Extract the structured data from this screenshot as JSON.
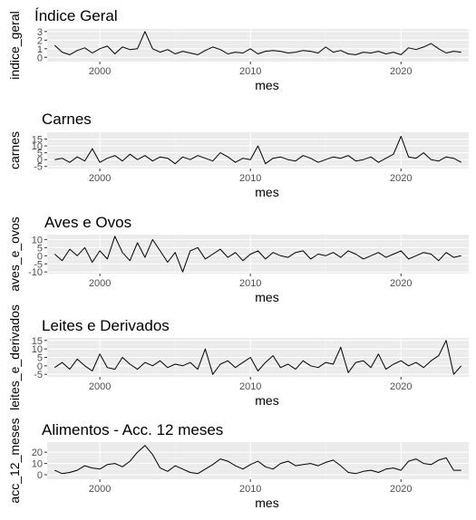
{
  "chart_data": [
    {
      "type": "line",
      "title": "Índice Geral",
      "xlabel": "mes",
      "ylabel": "indice_geral",
      "xlim": [
        1996.5,
        2024.5
      ],
      "ylim": [
        -0.5,
        3.3
      ],
      "x_ticks": [
        2000,
        2010,
        2020
      ],
      "y_ticks": [
        0,
        1,
        2,
        3
      ],
      "grid": true,
      "x": [
        1997,
        1997.5,
        1998,
        1998.5,
        1999,
        1999.5,
        2000,
        2000.5,
        2001,
        2001.5,
        2002,
        2002.5,
        2003,
        2003.5,
        2004,
        2004.5,
        2005,
        2005.5,
        2006,
        2006.5,
        2007,
        2007.5,
        2008,
        2008.5,
        2009,
        2009.5,
        2010,
        2010.5,
        2011,
        2011.5,
        2012,
        2012.5,
        2013,
        2013.5,
        2014,
        2014.5,
        2015,
        2015.5,
        2016,
        2016.5,
        2017,
        2017.5,
        2018,
        2018.5,
        2019,
        2019.5,
        2020,
        2020.5,
        2021,
        2021.5,
        2022,
        2022.5,
        2023,
        2023.5,
        2024
      ],
      "series": [
        {
          "values": [
            1.4,
            0.6,
            0.3,
            0.8,
            1.1,
            0.5,
            1.0,
            1.3,
            0.4,
            1.2,
            0.9,
            1.0,
            3.0,
            1.0,
            0.6,
            0.9,
            0.4,
            0.7,
            0.5,
            0.3,
            0.8,
            1.2,
            0.9,
            0.4,
            0.6,
            0.5,
            1.0,
            0.4,
            0.7,
            0.8,
            0.7,
            0.5,
            0.6,
            0.8,
            0.7,
            0.5,
            1.2,
            0.6,
            0.8,
            0.4,
            0.3,
            0.6,
            0.5,
            0.7,
            0.4,
            0.6,
            0.3,
            1.1,
            0.9,
            1.2,
            1.6,
            1.0,
            0.5,
            0.7,
            0.6
          ]
        }
      ]
    },
    {
      "type": "line",
      "title": "Carnes",
      "xlabel": "mes",
      "ylabel": "carnes",
      "xlim": [
        1996.5,
        2024.5
      ],
      "ylim": [
        -6.5,
        20
      ],
      "x_ticks": [
        2000,
        2010,
        2020
      ],
      "y_ticks": [
        -5,
        0,
        5,
        10,
        15
      ],
      "grid": true,
      "x": [
        1997,
        1997.5,
        1998,
        1998.5,
        1999,
        1999.5,
        2000,
        2000.5,
        2001,
        2001.5,
        2002,
        2002.5,
        2003,
        2003.5,
        2004,
        2004.5,
        2005,
        2005.5,
        2006,
        2006.5,
        2007,
        2007.5,
        2008,
        2008.5,
        2009,
        2009.5,
        2010,
        2010.5,
        2011,
        2011.5,
        2012,
        2012.5,
        2013,
        2013.5,
        2014,
        2014.5,
        2015,
        2015.5,
        2016,
        2016.5,
        2017,
        2017.5,
        2018,
        2018.5,
        2019,
        2019.5,
        2020,
        2020.5,
        2021,
        2021.5,
        2022,
        2022.5,
        2023,
        2023.5,
        2024
      ],
      "series": [
        {
          "values": [
            0,
            1,
            -2,
            2,
            -1,
            8,
            -2,
            1,
            3,
            -1,
            4,
            0,
            3,
            -1,
            2,
            1,
            -3,
            2,
            0,
            3,
            1,
            -1,
            5,
            2,
            -2,
            1,
            0,
            10,
            -3,
            1,
            2,
            0,
            -1,
            3,
            1,
            -2,
            0,
            2,
            1,
            3,
            -1,
            0,
            2,
            -2,
            1,
            4,
            17,
            2,
            1,
            5,
            0,
            -1,
            2,
            1,
            -2
          ]
        }
      ]
    },
    {
      "type": "line",
      "title": "Aves e Ovos",
      "xlabel": "mes",
      "ylabel": "aves_e_ovos",
      "xlim": [
        1996.5,
        2024.5
      ],
      "ylim": [
        -11,
        13
      ],
      "x_ticks": [
        2000,
        2010,
        2020
      ],
      "y_ticks": [
        -10,
        -5,
        0,
        5,
        10
      ],
      "grid": true,
      "x": [
        1997,
        1997.5,
        1998,
        1998.5,
        1999,
        1999.5,
        2000,
        2000.5,
        2001,
        2001.5,
        2002,
        2002.5,
        2003,
        2003.5,
        2004,
        2004.5,
        2005,
        2005.5,
        2006,
        2006.5,
        2007,
        2007.5,
        2008,
        2008.5,
        2009,
        2009.5,
        2010,
        2010.5,
        2011,
        2011.5,
        2012,
        2012.5,
        2013,
        2013.5,
        2014,
        2014.5,
        2015,
        2015.5,
        2016,
        2016.5,
        2017,
        2017.5,
        2018,
        2018.5,
        2019,
        2019.5,
        2020,
        2020.5,
        2021,
        2021.5,
        2022,
        2022.5,
        2023,
        2023.5,
        2024
      ],
      "series": [
        {
          "values": [
            1,
            -3,
            4,
            0,
            5,
            -4,
            3,
            -2,
            12,
            2,
            -3,
            8,
            -1,
            10,
            3,
            -4,
            2,
            -10,
            3,
            5,
            -2,
            1,
            4,
            -1,
            2,
            -3,
            1,
            3,
            -2,
            2,
            0,
            -1,
            2,
            3,
            -2,
            1,
            0,
            2,
            -1,
            3,
            1,
            -2,
            0,
            2,
            -1,
            1,
            3,
            -2,
            0,
            2,
            1,
            -3,
            2,
            -1,
            0
          ]
        }
      ]
    },
    {
      "type": "line",
      "title": "Leites e Derivados",
      "xlabel": "mes",
      "ylabel": "leites_e_derivados",
      "xlim": [
        1996.5,
        2024.5
      ],
      "ylim": [
        -6.5,
        16.5
      ],
      "x_ticks": [
        2000,
        2010,
        2020
      ],
      "y_ticks": [
        -5,
        0,
        5,
        10,
        15
      ],
      "grid": true,
      "x": [
        1997,
        1997.5,
        1998,
        1998.5,
        1999,
        1999.5,
        2000,
        2000.5,
        2001,
        2001.5,
        2002,
        2002.5,
        2003,
        2003.5,
        2004,
        2004.5,
        2005,
        2005.5,
        2006,
        2006.5,
        2007,
        2007.5,
        2008,
        2008.5,
        2009,
        2009.5,
        2010,
        2010.5,
        2011,
        2011.5,
        2012,
        2012.5,
        2013,
        2013.5,
        2014,
        2014.5,
        2015,
        2015.5,
        2016,
        2016.5,
        2017,
        2017.5,
        2018,
        2018.5,
        2019,
        2019.5,
        2020,
        2020.5,
        2021,
        2021.5,
        2022,
        2022.5,
        2023,
        2023.5,
        2024
      ],
      "series": [
        {
          "values": [
            -1,
            2,
            -2,
            4,
            0,
            -3,
            7,
            -1,
            -2,
            5,
            1,
            -2,
            2,
            0,
            3,
            -1,
            1,
            0,
            2,
            -2,
            10,
            -5,
            1,
            3,
            -1,
            2,
            5,
            -3,
            2,
            6,
            -1,
            1,
            -2,
            3,
            0,
            -1,
            2,
            1,
            11,
            -4,
            2,
            3,
            -1,
            7,
            -2,
            1,
            3,
            0,
            2,
            -1,
            3,
            6,
            15,
            -5,
            0
          ]
        }
      ]
    },
    {
      "type": "line",
      "title": "Alimentos - Acc. 12 meses",
      "xlabel": "mes",
      "ylabel": "acc_12_meses",
      "xlim": [
        1996.5,
        2024.5
      ],
      "ylim": [
        -4,
        29
      ],
      "x_ticks": [
        2000,
        2010,
        2020
      ],
      "y_ticks": [
        0,
        10,
        20
      ],
      "grid": true,
      "x": [
        1997,
        1997.5,
        1998,
        1998.5,
        1999,
        1999.5,
        2000,
        2000.5,
        2001,
        2001.5,
        2002,
        2002.5,
        2003,
        2003.5,
        2004,
        2004.5,
        2005,
        2005.5,
        2006,
        2006.5,
        2007,
        2007.5,
        2008,
        2008.5,
        2009,
        2009.5,
        2010,
        2010.5,
        2011,
        2011.5,
        2012,
        2012.5,
        2013,
        2013.5,
        2014,
        2014.5,
        2015,
        2015.5,
        2016,
        2016.5,
        2017,
        2017.5,
        2018,
        2018.5,
        2019,
        2019.5,
        2020,
        2020.5,
        2021,
        2021.5,
        2022,
        2022.5,
        2023,
        2023.5,
        2024
      ],
      "series": [
        {
          "values": [
            4,
            1,
            2,
            4,
            8,
            6,
            5,
            9,
            10,
            7,
            12,
            20,
            26,
            18,
            6,
            3,
            8,
            5,
            2,
            1,
            5,
            9,
            14,
            12,
            8,
            5,
            9,
            12,
            7,
            5,
            10,
            12,
            8,
            9,
            10,
            8,
            11,
            13,
            8,
            2,
            1,
            3,
            4,
            2,
            5,
            6,
            4,
            12,
            14,
            10,
            9,
            13,
            15,
            4,
            4
          ]
        }
      ]
    }
  ]
}
